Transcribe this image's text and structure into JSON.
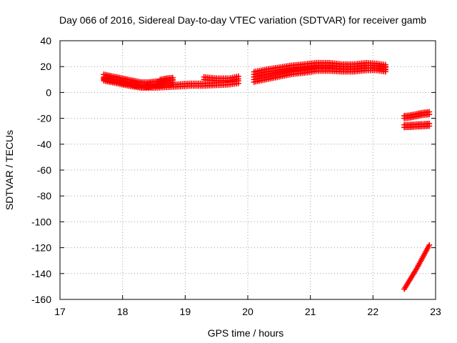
{
  "chart_data": {
    "type": "scatter",
    "title": "Day 066 of 2016, Sidereal Day-to-day VTEC variation (SDTVAR) for receiver gamb",
    "xlabel": "GPS time / hours",
    "ylabel": "SDTVAR / TECUs",
    "xlim": [
      17,
      23
    ],
    "ylim": [
      -160,
      40
    ],
    "xticks": [
      "17",
      "18",
      "19",
      "20",
      "21",
      "22",
      "23"
    ],
    "yticks": [
      "40",
      "20",
      "0",
      "-20",
      "-40",
      "-60",
      "-80",
      "-100",
      "-120",
      "-140",
      "-160"
    ],
    "grid": true,
    "marker": "+",
    "color": "#ff0000",
    "series": [
      {
        "points": [
          [
            17.7,
            12
          ],
          [
            17.8,
            11
          ],
          [
            17.9,
            10
          ],
          [
            18.0,
            9
          ],
          [
            18.1,
            8
          ],
          [
            18.2,
            7
          ],
          [
            18.3,
            6
          ],
          [
            18.4,
            6
          ],
          [
            18.5,
            6.5
          ],
          [
            18.6,
            7
          ],
          [
            18.7,
            7.5
          ],
          [
            18.8,
            8
          ]
        ],
        "width": 3
      },
      {
        "points": [
          [
            17.7,
            10
          ],
          [
            17.9,
            8
          ],
          [
            18.1,
            6
          ],
          [
            18.3,
            4.5
          ],
          [
            18.5,
            4.5
          ],
          [
            18.7,
            5
          ],
          [
            18.9,
            5.5
          ],
          [
            19.1,
            6
          ],
          [
            19.3,
            6
          ],
          [
            19.5,
            6.5
          ],
          [
            19.7,
            7
          ],
          [
            19.85,
            8
          ]
        ],
        "width": 2
      },
      {
        "points": [
          [
            18.6,
            9
          ],
          [
            18.7,
            10
          ],
          [
            18.8,
            10.5
          ]
        ],
        "width": 2
      },
      {
        "points": [
          [
            19.3,
            11
          ],
          [
            19.5,
            10
          ],
          [
            19.7,
            10
          ],
          [
            19.85,
            11.5
          ]
        ],
        "width": 2
      },
      {
        "points": [
          [
            20.1,
            10
          ],
          [
            20.3,
            12
          ],
          [
            20.5,
            14
          ],
          [
            20.7,
            16
          ],
          [
            20.9,
            17
          ],
          [
            21.1,
            18.5
          ],
          [
            21.3,
            18.5
          ],
          [
            21.5,
            18
          ],
          [
            21.7,
            18
          ],
          [
            21.9,
            19
          ],
          [
            22.05,
            19
          ],
          [
            22.2,
            18
          ]
        ],
        "width": 3
      },
      {
        "points": [
          [
            20.1,
            14
          ],
          [
            20.3,
            16
          ],
          [
            20.5,
            17.5
          ],
          [
            20.7,
            19
          ],
          [
            20.9,
            20
          ],
          [
            21.1,
            21
          ],
          [
            21.3,
            21
          ],
          [
            21.5,
            20
          ],
          [
            21.7,
            20
          ],
          [
            21.9,
            21
          ],
          [
            22.05,
            20.5
          ],
          [
            22.2,
            19.5
          ]
        ],
        "width": 3
      },
      {
        "points": [
          [
            22.5,
            -19
          ],
          [
            22.6,
            -18.5
          ],
          [
            22.7,
            -17.5
          ],
          [
            22.8,
            -16.5
          ],
          [
            22.9,
            -16
          ]
        ],
        "width": 2
      },
      {
        "points": [
          [
            22.5,
            -26
          ],
          [
            22.6,
            -25.8
          ],
          [
            22.7,
            -25.5
          ],
          [
            22.8,
            -25.3
          ],
          [
            22.9,
            -25
          ]
        ],
        "width": 2
      },
      {
        "points": [
          [
            22.5,
            -152
          ],
          [
            22.6,
            -144
          ],
          [
            22.7,
            -136
          ],
          [
            22.8,
            -127
          ],
          [
            22.9,
            -118
          ]
        ],
        "width": 1
      }
    ]
  }
}
